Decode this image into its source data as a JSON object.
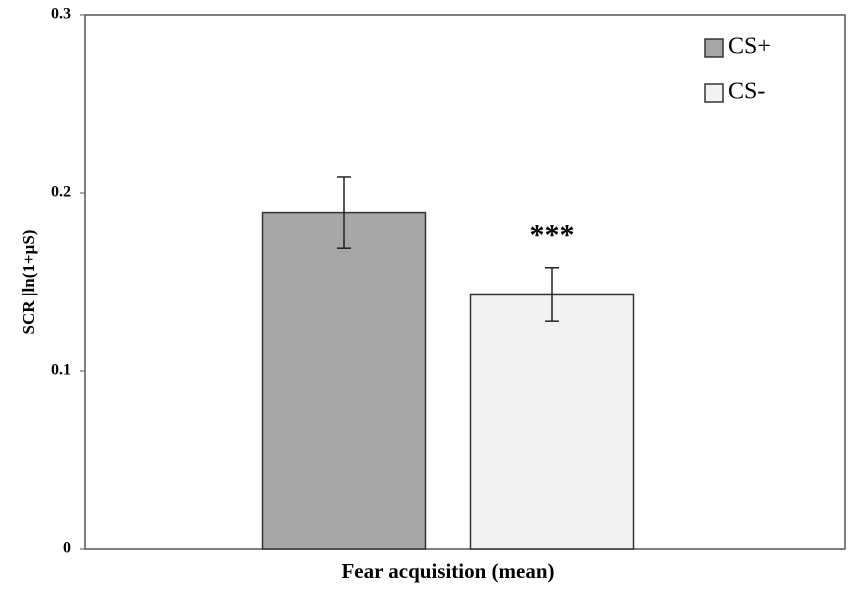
{
  "chart_data": {
    "type": "bar",
    "ylabel": "SCR |ln(1+µS)",
    "xlabel": "Fear acquisition (mean)",
    "categories": [
      null
    ],
    "series": [
      {
        "name": "CS+",
        "color": "#a6a6a6",
        "values": [
          0.189
        ],
        "errors": [
          0.02
        ]
      },
      {
        "name": "CS-",
        "color": "#f2f2f2",
        "values": [
          0.143
        ],
        "errors": [
          0.015
        ]
      }
    ],
    "annotation": "***",
    "ylim": [
      0,
      0.3
    ],
    "yticks": [
      0,
      0.1,
      0.2,
      0.3
    ],
    "grid": false,
    "legend": "upper right"
  }
}
